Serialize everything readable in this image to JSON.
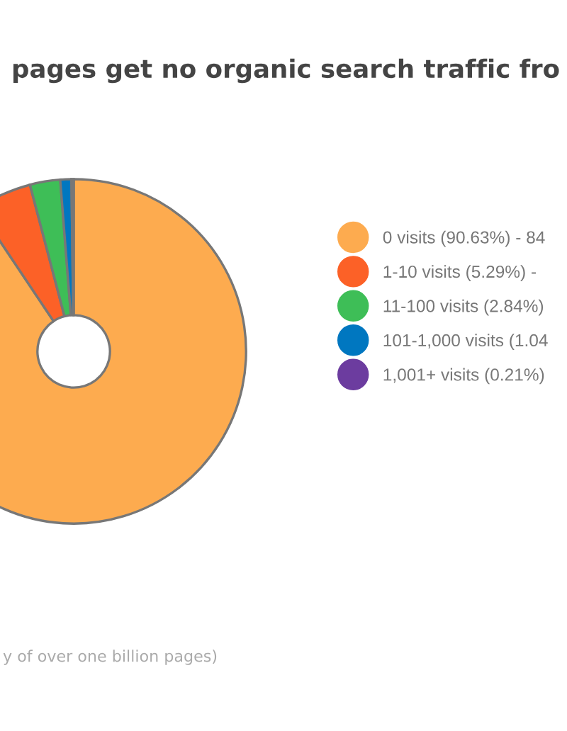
{
  "chart_data": {
    "type": "donut",
    "title": "pages get no organic search traffic fro",
    "categories": [
      "0 visits (90.63%) - 84",
      "1-10 visits (5.29%) -",
      "11-100 visits (2.84%)",
      "101-1,000 visits (1.04",
      "1,001+ visits (0.21%)"
    ],
    "values": [
      90.63,
      5.29,
      2.84,
      1.04,
      0.21
    ],
    "colors": [
      "#fdab4f",
      "#fc6127",
      "#3ebe57",
      "#0077c0",
      "#6c3c9f"
    ],
    "legend": "right",
    "annotations": [
      "y of over one billion pages)"
    ]
  }
}
